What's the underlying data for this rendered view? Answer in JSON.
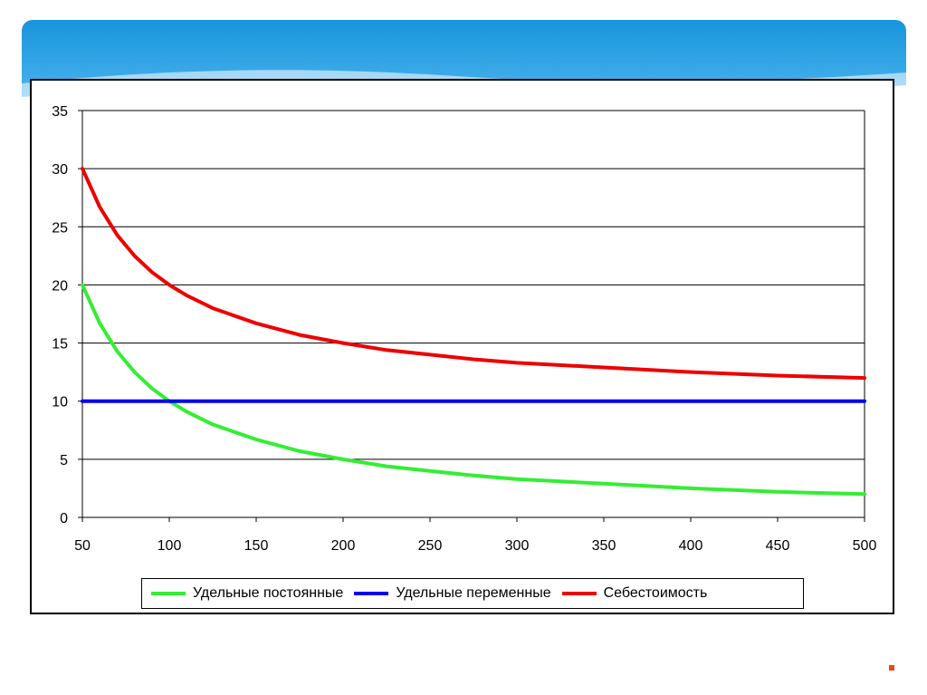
{
  "colors": {
    "banner": "#1895dc",
    "corner_mark": "#e8471c"
  },
  "chart_data": {
    "type": "line",
    "x": [
      50,
      60,
      70,
      80,
      90,
      100,
      110,
      125,
      150,
      175,
      200,
      225,
      250,
      275,
      300,
      350,
      400,
      450,
      500
    ],
    "xlim": [
      50,
      500
    ],
    "ylim": [
      0,
      35
    ],
    "x_ticks": [
      "50",
      "100",
      "150",
      "200",
      "250",
      "300",
      "350",
      "400",
      "450",
      "500"
    ],
    "y_ticks": [
      "0",
      "5",
      "10",
      "15",
      "20",
      "25",
      "30",
      "35"
    ],
    "grid": "horizontal",
    "legend_position": "bottom",
    "series": [
      {
        "name": "Удельные постоянные",
        "color": "#33ee33",
        "values": [
          20,
          16.7,
          14.3,
          12.5,
          11.1,
          10,
          9.1,
          8,
          6.7,
          5.7,
          5,
          4.4,
          4,
          3.6,
          3.3,
          2.9,
          2.5,
          2.2,
          2
        ]
      },
      {
        "name": "Удельные переменные",
        "color": "#0000ee",
        "values": [
          10,
          10,
          10,
          10,
          10,
          10,
          10,
          10,
          10,
          10,
          10,
          10,
          10,
          10,
          10,
          10,
          10,
          10,
          10
        ]
      },
      {
        "name": "Себестоимость",
        "color": "#ee0000",
        "values": [
          30,
          26.7,
          24.3,
          22.5,
          21.1,
          20,
          19.1,
          18,
          16.7,
          15.7,
          15,
          14.4,
          14,
          13.6,
          13.3,
          12.9,
          12.5,
          12.2,
          12
        ]
      }
    ]
  }
}
